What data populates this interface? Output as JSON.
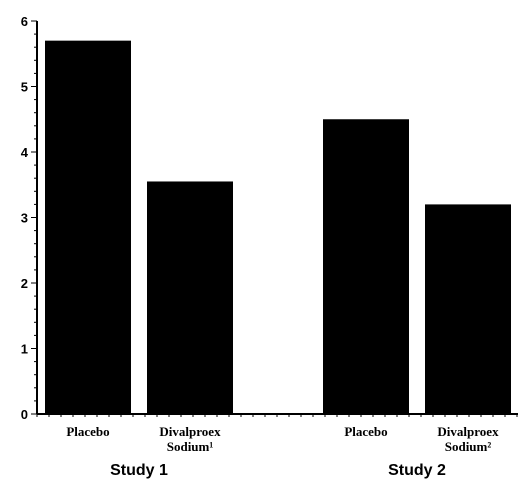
{
  "chart_data": {
    "type": "bar",
    "title": "",
    "xlabel": "",
    "ylabel": "",
    "ylim": [
      0,
      6
    ],
    "yticks": [
      "0",
      "1",
      "2",
      "3",
      "4",
      "5",
      "6"
    ],
    "grid": false,
    "groups": [
      {
        "label": "Study 1",
        "bars": [
          {
            "label": [
              "Placebo"
            ],
            "value": 5.7
          },
          {
            "label": [
              "Divalproex",
              "Sodium¹"
            ],
            "value": 3.55
          }
        ]
      },
      {
        "label": "Study 2",
        "bars": [
          {
            "label": [
              "Placebo"
            ],
            "value": 4.5
          },
          {
            "label": [
              "Divalproex",
              "Sodium²"
            ],
            "value": 3.2
          }
        ]
      }
    ],
    "bar_color": "#000000",
    "axis_color": "#000000"
  }
}
